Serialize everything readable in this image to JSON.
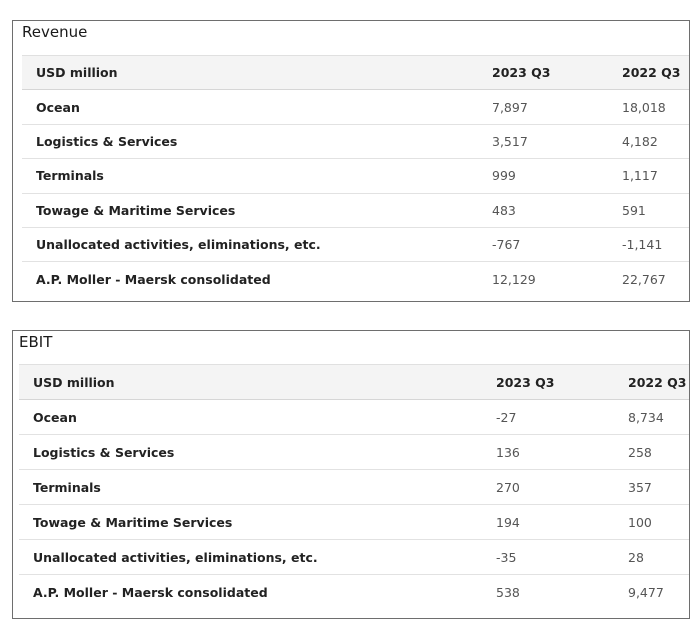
{
  "revenue": {
    "title": "Revenue",
    "headers": [
      "USD million",
      "2023 Q3",
      "2022 Q3"
    ],
    "rows": [
      {
        "label": "Ocean",
        "q3_2023": "7,897",
        "q3_2022": "18,018"
      },
      {
        "label": "Logistics & Services",
        "q3_2023": "3,517",
        "q3_2022": "4,182"
      },
      {
        "label": "Terminals",
        "q3_2023": "999",
        "q3_2022": "1,117"
      },
      {
        "label": "Towage & Maritime Services",
        "q3_2023": "483",
        "q3_2022": "591"
      },
      {
        "label": "Unallocated activities, eliminations, etc.",
        "q3_2023": "-767",
        "q3_2022": "-1,141"
      },
      {
        "label": "A.P. Moller - Maersk consolidated",
        "q3_2023": "12,129",
        "q3_2022": "22,767"
      }
    ]
  },
  "ebit": {
    "title": "EBIT",
    "headers": [
      "USD million",
      "2023 Q3",
      "2022 Q3"
    ],
    "rows": [
      {
        "label": "Ocean",
        "q3_2023": "-27",
        "q3_2022": "8,734"
      },
      {
        "label": "Logistics & Services",
        "q3_2023": "136",
        "q3_2022": "258"
      },
      {
        "label": "Terminals",
        "q3_2023": "270",
        "q3_2022": "357"
      },
      {
        "label": "Towage & Maritime Services",
        "q3_2023": "194",
        "q3_2022": "100"
      },
      {
        "label": "Unallocated activities, eliminations, etc.",
        "q3_2023": "-35",
        "q3_2022": "28"
      },
      {
        "label": "A.P. Moller - Maersk consolidated",
        "q3_2023": "538",
        "q3_2022": "9,477"
      }
    ]
  }
}
